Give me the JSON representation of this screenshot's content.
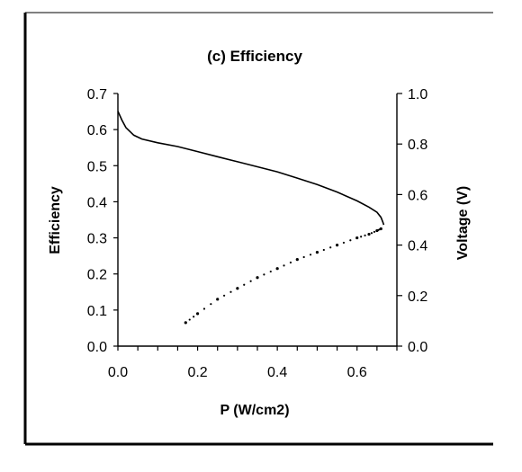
{
  "chart_data": {
    "type": "line",
    "title": "(c) Efficiency",
    "xlabel": "P (W/cm2)",
    "ylabel": "Efficiency",
    "y2label": "Voltage (V)",
    "xlim": [
      0,
      0.7
    ],
    "ylim": [
      0,
      0.7
    ],
    "y2lim": [
      0,
      1.0
    ],
    "x_ticks": [
      "0.0",
      "0.2",
      "0.4",
      "0.6"
    ],
    "y_ticks": [
      "0.0",
      "0.1",
      "0.2",
      "0.3",
      "0.4",
      "0.5",
      "0.6",
      "0.7"
    ],
    "y2_ticks": [
      "0.0",
      "0.2",
      "0.4",
      "0.6",
      "0.8",
      "1.0"
    ],
    "grid": false,
    "legend": "none",
    "series": [
      {
        "axis": "y2",
        "style": "solid",
        "color": "#000000",
        "x": [
          0.0,
          0.01,
          0.02,
          0.04,
          0.06,
          0.1,
          0.15,
          0.2,
          0.25,
          0.3,
          0.35,
          0.4,
          0.45,
          0.5,
          0.55,
          0.6,
          0.63,
          0.65,
          0.66,
          0.665,
          0.667
        ],
        "values": [
          0.93,
          0.895,
          0.865,
          0.835,
          0.82,
          0.805,
          0.79,
          0.77,
          0.75,
          0.73,
          0.71,
          0.69,
          0.665,
          0.64,
          0.61,
          0.575,
          0.55,
          0.53,
          0.51,
          0.49,
          0.48
        ]
      },
      {
        "axis": "y",
        "style": "dotted",
        "color": "#000000",
        "x": [
          0.17,
          0.2,
          0.25,
          0.3,
          0.35,
          0.4,
          0.45,
          0.5,
          0.55,
          0.6,
          0.63,
          0.65,
          0.66
        ],
        "values": [
          0.065,
          0.09,
          0.13,
          0.16,
          0.19,
          0.215,
          0.24,
          0.26,
          0.28,
          0.3,
          0.31,
          0.32,
          0.325
        ]
      }
    ]
  }
}
